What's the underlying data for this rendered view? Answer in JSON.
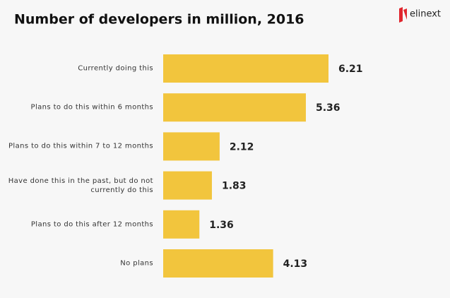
{
  "logo": "elinext",
  "chart_data": {
    "type": "bar",
    "orientation": "horizontal",
    "title": "Number of developers in million, 2016",
    "categories": [
      "Currently doing this",
      "Plans to do this within 6 months",
      "Plans to do this within 7 to 12 months",
      "Have done this in the past, but do not currently do this",
      "Plans to do this after 12 months",
      "No plans"
    ],
    "values": [
      6.21,
      5.36,
      2.12,
      1.83,
      1.36,
      4.13
    ],
    "color": "#f2c53d"
  }
}
